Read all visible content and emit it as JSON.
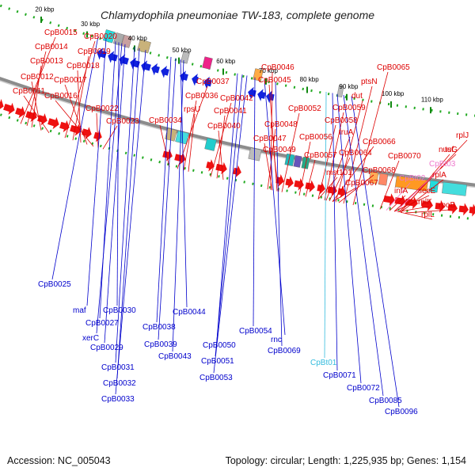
{
  "title": "Chlamydophila pneumoniae TW-183, complete genome",
  "footer": {
    "accession": "Accession: NC_005043",
    "summary": "Topology: circular; Length: 1,225,935 bp; Genes: 1,154"
  },
  "colors": {
    "forward_label": "#dd0000",
    "reverse_label": "#0000cc",
    "rna_label_cyan": "#33bbdd",
    "rna_label_pink": "#ee77cc",
    "forward_gene": "#ee1111",
    "reverse_gene": "#1122dd",
    "backbone": "#8c8c8c",
    "gc_skew_dots": "#22aa22"
  },
  "kbp_ticks": [
    "20 kbp",
    "30 kbp",
    "40 kbp",
    "50 kbp",
    "60 kbp",
    "70 kbp",
    "80 kbp",
    "90 kbp",
    "100 kbp",
    "110 kbp"
  ],
  "forward_labels": [
    {
      "text": "CpB0015",
      "color": "red"
    },
    {
      "text": "CpB0014",
      "color": "red"
    },
    {
      "text": "CpB0013",
      "color": "red"
    },
    {
      "text": "CpB0012",
      "color": "red"
    },
    {
      "text": "CpB0011",
      "color": "red"
    },
    {
      "text": "CpB0020",
      "color": "red"
    },
    {
      "text": "CpB0019",
      "color": "red"
    },
    {
      "text": "CpB0018",
      "color": "red"
    },
    {
      "text": "CpB0017",
      "color": "red"
    },
    {
      "text": "CpB0016",
      "color": "red"
    },
    {
      "text": "CpB0022",
      "color": "red"
    },
    {
      "text": "CpB0023",
      "color": "red"
    },
    {
      "text": "CpB0034",
      "color": "red"
    },
    {
      "text": "CpB0037",
      "color": "red"
    },
    {
      "text": "CpB0036",
      "color": "red"
    },
    {
      "text": "rpsU",
      "color": "red"
    },
    {
      "text": "CpB0042",
      "color": "red"
    },
    {
      "text": "CpB0041",
      "color": "red"
    },
    {
      "text": "CpB0040",
      "color": "red"
    },
    {
      "text": "CpB0046",
      "color": "red"
    },
    {
      "text": "CpB0045",
      "color": "red"
    },
    {
      "text": "CpB0052",
      "color": "red"
    },
    {
      "text": "CpB0048",
      "color": "red"
    },
    {
      "text": "CpB0047",
      "color": "red"
    },
    {
      "text": "CpB0049",
      "color": "red"
    },
    {
      "text": "CpB0056",
      "color": "red"
    },
    {
      "text": "CpB0057",
      "color": "red"
    },
    {
      "text": "CpB0065",
      "color": "red"
    },
    {
      "text": "ptsN",
      "color": "red"
    },
    {
      "text": "dut",
      "color": "red"
    },
    {
      "text": "CpB0059",
      "color": "red"
    },
    {
      "text": "CpB0058",
      "color": "red"
    },
    {
      "text": "fruA",
      "color": "red"
    },
    {
      "text": "CpB0066",
      "color": "red"
    },
    {
      "text": "CpB0064",
      "color": "red"
    },
    {
      "text": "mst101",
      "color": "red"
    },
    {
      "text": "CpB0068",
      "color": "red"
    },
    {
      "text": "CpB0067",
      "color": "red"
    },
    {
      "text": "CpB0070",
      "color": "red"
    },
    {
      "text": "rplJ",
      "color": "red"
    },
    {
      "text": "tuf",
      "color": "red"
    },
    {
      "text": "nusG",
      "color": "red"
    },
    {
      "text": "CpBt03",
      "color": "pink"
    },
    {
      "text": "CpBt02",
      "color": "pink"
    },
    {
      "text": "rplA",
      "color": "red"
    },
    {
      "text": "infA",
      "color": "red"
    },
    {
      "text": "secE",
      "color": "red"
    },
    {
      "text": "rplK",
      "color": "red"
    },
    {
      "text": "rplL",
      "color": "red"
    },
    {
      "text": "rpoB",
      "color": "red"
    }
  ],
  "reverse_labels": [
    {
      "text": "CpB0025",
      "color": "blue"
    },
    {
      "text": "maf",
      "color": "blue"
    },
    {
      "text": "CpB0030",
      "color": "blue"
    },
    {
      "text": "CpB0027",
      "color": "blue"
    },
    {
      "text": "xerC",
      "color": "blue"
    },
    {
      "text": "CpB0029",
      "color": "blue"
    },
    {
      "text": "CpB0031",
      "color": "blue"
    },
    {
      "text": "CpB0032",
      "color": "blue"
    },
    {
      "text": "CpB0033",
      "color": "blue"
    },
    {
      "text": "CpB0038",
      "color": "blue"
    },
    {
      "text": "CpB0044",
      "color": "blue"
    },
    {
      "text": "CpB0039",
      "color": "blue"
    },
    {
      "text": "CpB0043",
      "color": "blue"
    },
    {
      "text": "CpB0050",
      "color": "blue"
    },
    {
      "text": "CpB0051",
      "color": "blue"
    },
    {
      "text": "CpB0053",
      "color": "blue"
    },
    {
      "text": "CpB0054",
      "color": "blue"
    },
    {
      "text": "rnc",
      "color": "blue"
    },
    {
      "text": "CpB0069",
      "color": "blue"
    },
    {
      "text": "CpBt01",
      "color": "cyan"
    },
    {
      "text": "CpB0071",
      "color": "blue"
    },
    {
      "text": "CpB0072",
      "color": "blue"
    },
    {
      "text": "CpB0085",
      "color": "blue"
    },
    {
      "text": "CpB0096",
      "color": "blue"
    }
  ]
}
